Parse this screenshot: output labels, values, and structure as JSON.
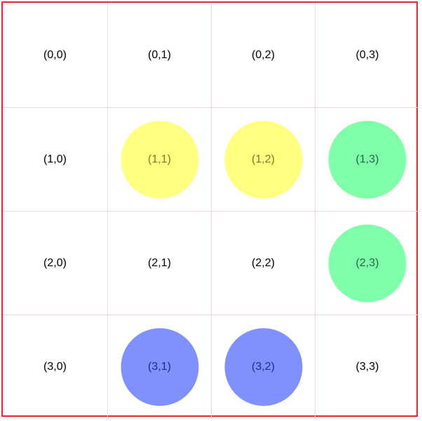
{
  "board": {
    "rows": [
      [
        {
          "label": "(0,0)",
          "piece": null
        },
        {
          "label": "(0,1)",
          "piece": null
        },
        {
          "label": "(0,2)",
          "piece": null
        },
        {
          "label": "(0,3)",
          "piece": null
        }
      ],
      [
        {
          "label": "(1,0)",
          "piece": null
        },
        {
          "label": "(1,1)",
          "piece": "yellow"
        },
        {
          "label": "(1,2)",
          "piece": "yellow"
        },
        {
          "label": "(1,3)",
          "piece": "green"
        }
      ],
      [
        {
          "label": "(2,0)",
          "piece": null
        },
        {
          "label": "(2,1)",
          "piece": null
        },
        {
          "label": "(2,2)",
          "piece": null
        },
        {
          "label": "(2,3)",
          "piece": "green"
        }
      ],
      [
        {
          "label": "(3,0)",
          "piece": null
        },
        {
          "label": "(3,1)",
          "piece": "blue"
        },
        {
          "label": "(3,2)",
          "piece": "blue"
        },
        {
          "label": "(3,3)",
          "piece": null
        }
      ]
    ]
  },
  "colors": {
    "border": "#e8262e",
    "gridline": "#f6d6dc",
    "yellow": "#ffff80",
    "yellow_text": "#7a7a2e",
    "green": "#80ffaa",
    "green_text": "#1f6b42",
    "blue": "#8090ff",
    "blue_text": "#1a2a9a"
  }
}
